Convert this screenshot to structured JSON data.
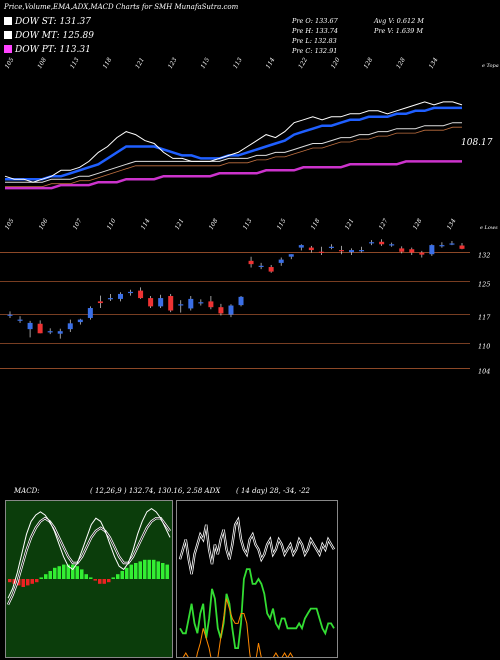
{
  "header": {
    "title": "Price,Volume,EMA,ADX,MACD Charts for SMH MunafaSutra.com"
  },
  "legend": [
    {
      "label": "DOW ST: 131.37",
      "color": "#ffffff"
    },
    {
      "label": "DOW MT: 125.89",
      "color": "#ffffff"
    },
    {
      "label": "DOW PT: 113.31",
      "color": "#ff44ff"
    }
  ],
  "stats": {
    "open": "Pre  O: 133.67",
    "high": "Pre  H: 133.74",
    "low": "Pre  L: 132.83",
    "close": "Pre  C: 132.91",
    "avg_volume": "Avg V: 0.612  M",
    "prev_volume": "Pre  V: 1.639 M"
  },
  "macd_header": {
    "label": "MACD:",
    "values": "( 12,26,9 ) 132.74,  130.16, 2.58 ADX",
    "adx_values": "( 14  day) 28,  -34,  -22"
  },
  "colors": {
    "background": "#000000",
    "price_line": "#ffffff",
    "ema_short": "#1f5fff",
    "ema_long": "#cc33cc",
    "bull_candle": "#3b6fe6",
    "bear_candle": "#ee3333",
    "grid_line": "#a0522d",
    "macd_hist_up": "#33ee33",
    "macd_hist_down": "#ee2222",
    "adx_line": "#33dd33",
    "di_minus_line": "#ff8800"
  },
  "chart_data": [
    {
      "type": "line",
      "name": "price-ema",
      "top_ticks": [
        "105",
        "108",
        "113",
        "118",
        "121",
        "123",
        "115",
        "113",
        "114",
        "122",
        "120",
        "128",
        "128",
        "134"
      ],
      "right_label_top": "e Topa",
      "current_value_label": "108.17",
      "close": [
        108,
        107,
        107,
        106,
        107,
        108,
        110,
        110,
        111,
        113,
        116,
        118,
        121,
        123,
        122,
        120,
        119,
        116,
        114,
        114,
        113,
        113,
        113,
        114,
        115,
        116,
        118,
        120,
        122,
        121,
        123,
        126,
        127,
        128,
        127,
        128,
        128,
        129,
        129,
        130,
        130,
        129,
        130,
        131,
        132,
        133,
        132,
        133,
        133,
        132
      ],
      "series": [
        {
          "name": "DOW ST",
          "values": [
            107,
            107,
            107,
            107,
            107,
            108,
            108,
            109,
            110,
            111,
            112,
            114,
            116,
            118,
            118,
            118,
            118,
            117,
            116,
            115,
            115,
            114,
            114,
            114,
            115,
            115,
            116,
            117,
            118,
            119,
            120,
            122,
            123,
            124,
            125,
            125,
            126,
            127,
            127,
            128,
            128,
            128,
            129,
            129,
            130,
            130,
            131,
            131,
            131,
            131
          ]
        },
        {
          "name": "DOW MT",
          "values": [
            106,
            106,
            106,
            106,
            106,
            107,
            107,
            107,
            108,
            108,
            109,
            110,
            111,
            112,
            113,
            113,
            113,
            113,
            113,
            113,
            113,
            113,
            113,
            113,
            114,
            114,
            114,
            115,
            115,
            116,
            116,
            117,
            118,
            119,
            119,
            120,
            121,
            121,
            122,
            122,
            123,
            123,
            124,
            124,
            124,
            125,
            125,
            125,
            126,
            126
          ]
        },
        {
          "name": "DOW PT",
          "values": [
            104,
            104,
            104,
            104,
            104,
            104,
            105,
            105,
            105,
            105,
            106,
            106,
            106,
            107,
            107,
            107,
            107,
            108,
            108,
            108,
            108,
            108,
            108,
            109,
            109,
            109,
            109,
            109,
            110,
            110,
            110,
            110,
            111,
            111,
            111,
            111,
            111,
            112,
            112,
            112,
            112,
            112,
            112,
            113,
            113,
            113,
            113,
            113,
            113,
            113
          ]
        }
      ]
    },
    {
      "type": "candlestick",
      "name": "candles",
      "top_ticks": [
        "105",
        "106",
        "107",
        "110",
        "114",
        "121",
        "108",
        "113",
        "115",
        "118",
        "121",
        "127",
        "128",
        "134"
      ],
      "right_label_top": "e Lows",
      "price_levels": [
        132,
        125,
        117,
        110,
        104
      ],
      "ylim": [
        100,
        136
      ],
      "candles": [
        {
          "o": 117.0,
          "h": 117.8,
          "l": 116.2,
          "c": 117.0
        },
        {
          "o": 115.8,
          "h": 116.6,
          "l": 115.0,
          "c": 115.8
        },
        {
          "o": 113.5,
          "h": 115.5,
          "l": 111.5,
          "c": 115.0
        },
        {
          "o": 114.8,
          "h": 115.6,
          "l": 112.5,
          "c": 112.5
        },
        {
          "o": 113.0,
          "h": 113.7,
          "l": 112.3,
          "c": 113.0
        },
        {
          "o": 112.4,
          "h": 113.6,
          "l": 111.2,
          "c": 113.0
        },
        {
          "o": 113.5,
          "h": 115.8,
          "l": 112.8,
          "c": 114.9
        },
        {
          "o": 115.2,
          "h": 116.0,
          "l": 114.6,
          "c": 115.8
        },
        {
          "o": 116.2,
          "h": 119.0,
          "l": 115.8,
          "c": 118.6
        },
        {
          "o": 120.2,
          "h": 121.6,
          "l": 118.6,
          "c": 119.8
        },
        {
          "o": 121.0,
          "h": 122.0,
          "l": 120.3,
          "c": 121.0
        },
        {
          "o": 120.8,
          "h": 122.4,
          "l": 120.2,
          "c": 122.0
        },
        {
          "o": 122.3,
          "h": 123.0,
          "l": 121.6,
          "c": 122.5
        },
        {
          "o": 122.8,
          "h": 123.6,
          "l": 120.8,
          "c": 121.0
        },
        {
          "o": 121.0,
          "h": 121.5,
          "l": 118.6,
          "c": 119.0
        },
        {
          "o": 119.0,
          "h": 121.8,
          "l": 118.6,
          "c": 121.0
        },
        {
          "o": 121.5,
          "h": 122.0,
          "l": 117.6,
          "c": 118.0
        },
        {
          "o": 119.3,
          "h": 120.5,
          "l": 117.5,
          "c": 119.5
        },
        {
          "o": 118.5,
          "h": 121.5,
          "l": 118.0,
          "c": 120.8
        },
        {
          "o": 119.9,
          "h": 120.7,
          "l": 119.2,
          "c": 120.0
        },
        {
          "o": 120.2,
          "h": 121.5,
          "l": 118.3,
          "c": 118.8
        },
        {
          "o": 118.8,
          "h": 119.6,
          "l": 116.8,
          "c": 117.3
        },
        {
          "o": 117.0,
          "h": 119.5,
          "l": 116.4,
          "c": 119.2
        },
        {
          "o": 119.3,
          "h": 121.5,
          "l": 119.0,
          "c": 121.3
        },
        {
          "o": 130.0,
          "h": 131.0,
          "l": 128.4,
          "c": 129.2
        },
        {
          "o": 128.8,
          "h": 129.5,
          "l": 128.0,
          "c": 128.8
        },
        {
          "o": 128.5,
          "h": 129.0,
          "l": 127.1,
          "c": 127.4
        },
        {
          "o": 129.5,
          "h": 130.8,
          "l": 128.8,
          "c": 130.3
        },
        {
          "o": 131.0,
          "h": 131.6,
          "l": 130.4,
          "c": 131.6
        },
        {
          "o": 133.2,
          "h": 134.0,
          "l": 132.5,
          "c": 133.8
        },
        {
          "o": 133.2,
          "h": 133.6,
          "l": 132.0,
          "c": 132.6
        },
        {
          "o": 132.2,
          "h": 133.4,
          "l": 131.4,
          "c": 132.0
        },
        {
          "o": 133.4,
          "h": 134.0,
          "l": 132.8,
          "c": 133.4
        },
        {
          "o": 132.6,
          "h": 133.6,
          "l": 131.6,
          "c": 132.4
        },
        {
          "o": 132.1,
          "h": 133.0,
          "l": 131.4,
          "c": 132.6
        },
        {
          "o": 132.6,
          "h": 133.4,
          "l": 132.0,
          "c": 132.6
        },
        {
          "o": 134.5,
          "h": 135.0,
          "l": 133.8,
          "c": 134.5
        },
        {
          "o": 134.6,
          "h": 135.2,
          "l": 133.6,
          "c": 134.0
        },
        {
          "o": 134.0,
          "h": 134.4,
          "l": 133.4,
          "c": 134.0
        },
        {
          "o": 133.0,
          "h": 133.5,
          "l": 131.8,
          "c": 132.2
        },
        {
          "o": 132.8,
          "h": 133.2,
          "l": 131.4,
          "c": 132.0
        },
        {
          "o": 132.0,
          "h": 132.4,
          "l": 130.8,
          "c": 131.5
        },
        {
          "o": 131.6,
          "h": 134.0,
          "l": 131.2,
          "c": 133.8
        },
        {
          "o": 133.8,
          "h": 134.5,
          "l": 133.2,
          "c": 133.8
        },
        {
          "o": 134.2,
          "h": 134.8,
          "l": 133.8,
          "c": 134.2
        },
        {
          "o": 133.7,
          "h": 134.3,
          "l": 132.8,
          "c": 132.9
        }
      ]
    },
    {
      "type": "bar",
      "name": "macd",
      "histogram": [
        -2,
        -3,
        -4,
        -5,
        -4,
        -3,
        -2,
        1,
        3,
        5,
        7,
        8,
        9,
        9,
        9,
        8,
        6,
        3,
        1,
        -1,
        -3,
        -3,
        -2,
        1,
        3,
        5,
        7,
        9,
        10,
        11,
        12,
        12,
        12,
        11,
        10,
        9
      ],
      "macd_line": [
        -6,
        -3,
        2,
        8,
        14,
        18,
        20,
        21,
        20,
        18,
        15,
        11,
        7,
        4,
        3,
        5,
        9,
        13,
        17,
        19,
        18,
        15,
        11,
        7,
        4,
        3,
        5,
        9,
        14,
        18,
        21,
        22,
        21,
        19,
        16,
        13
      ],
      "signal_line": [
        -8,
        -5,
        -1,
        4,
        9,
        13,
        16,
        18,
        19,
        18,
        16,
        13,
        10,
        7,
        5,
        5,
        7,
        10,
        13,
        15,
        16,
        15,
        13,
        10,
        7,
        5,
        5,
        7,
        10,
        13,
        16,
        18,
        19,
        19,
        17,
        15
      ]
    },
    {
      "type": "line",
      "name": "adx",
      "series": [
        {
          "name": "ADX",
          "values": [
            28,
            27,
            27,
            30,
            33,
            29,
            27,
            31,
            33,
            26,
            30,
            36,
            34,
            28,
            26,
            29,
            35,
            33,
            28,
            24,
            24,
            29,
            38,
            40,
            40,
            37,
            37,
            38,
            37,
            35,
            31,
            30,
            32,
            29,
            28,
            30,
            30,
            28,
            28,
            28,
            28,
            29,
            28,
            30,
            31,
            32,
            32,
            32,
            30,
            28,
            27,
            29,
            29,
            28
          ]
        },
        {
          "name": "-DI",
          "values": [
            23,
            24,
            25,
            24,
            22,
            22,
            25,
            27,
            30,
            28,
            26,
            23,
            22,
            24,
            28,
            32,
            36,
            34,
            32,
            31,
            31,
            33,
            33,
            31,
            25,
            21,
            23,
            27,
            24,
            24,
            24,
            24,
            24,
            25,
            24,
            24,
            25,
            24,
            25,
            24,
            24,
            24,
            23,
            24,
            24,
            24,
            24,
            23,
            23,
            24,
            24,
            24,
            24,
            24
          ]
        },
        {
          "name": "+DI",
          "values": [
            34,
            36,
            38,
            34,
            31,
            35,
            37,
            39,
            38,
            41,
            36,
            33,
            37,
            35,
            38,
            40,
            36,
            34,
            37,
            41,
            42,
            38,
            36,
            35,
            38,
            39,
            37,
            36,
            34,
            35,
            37,
            38,
            35,
            36,
            38,
            37,
            35,
            36,
            37,
            35,
            36,
            38,
            37,
            35,
            36,
            38,
            37,
            36,
            35,
            37,
            36,
            38,
            37,
            36
          ]
        }
      ]
    }
  ]
}
